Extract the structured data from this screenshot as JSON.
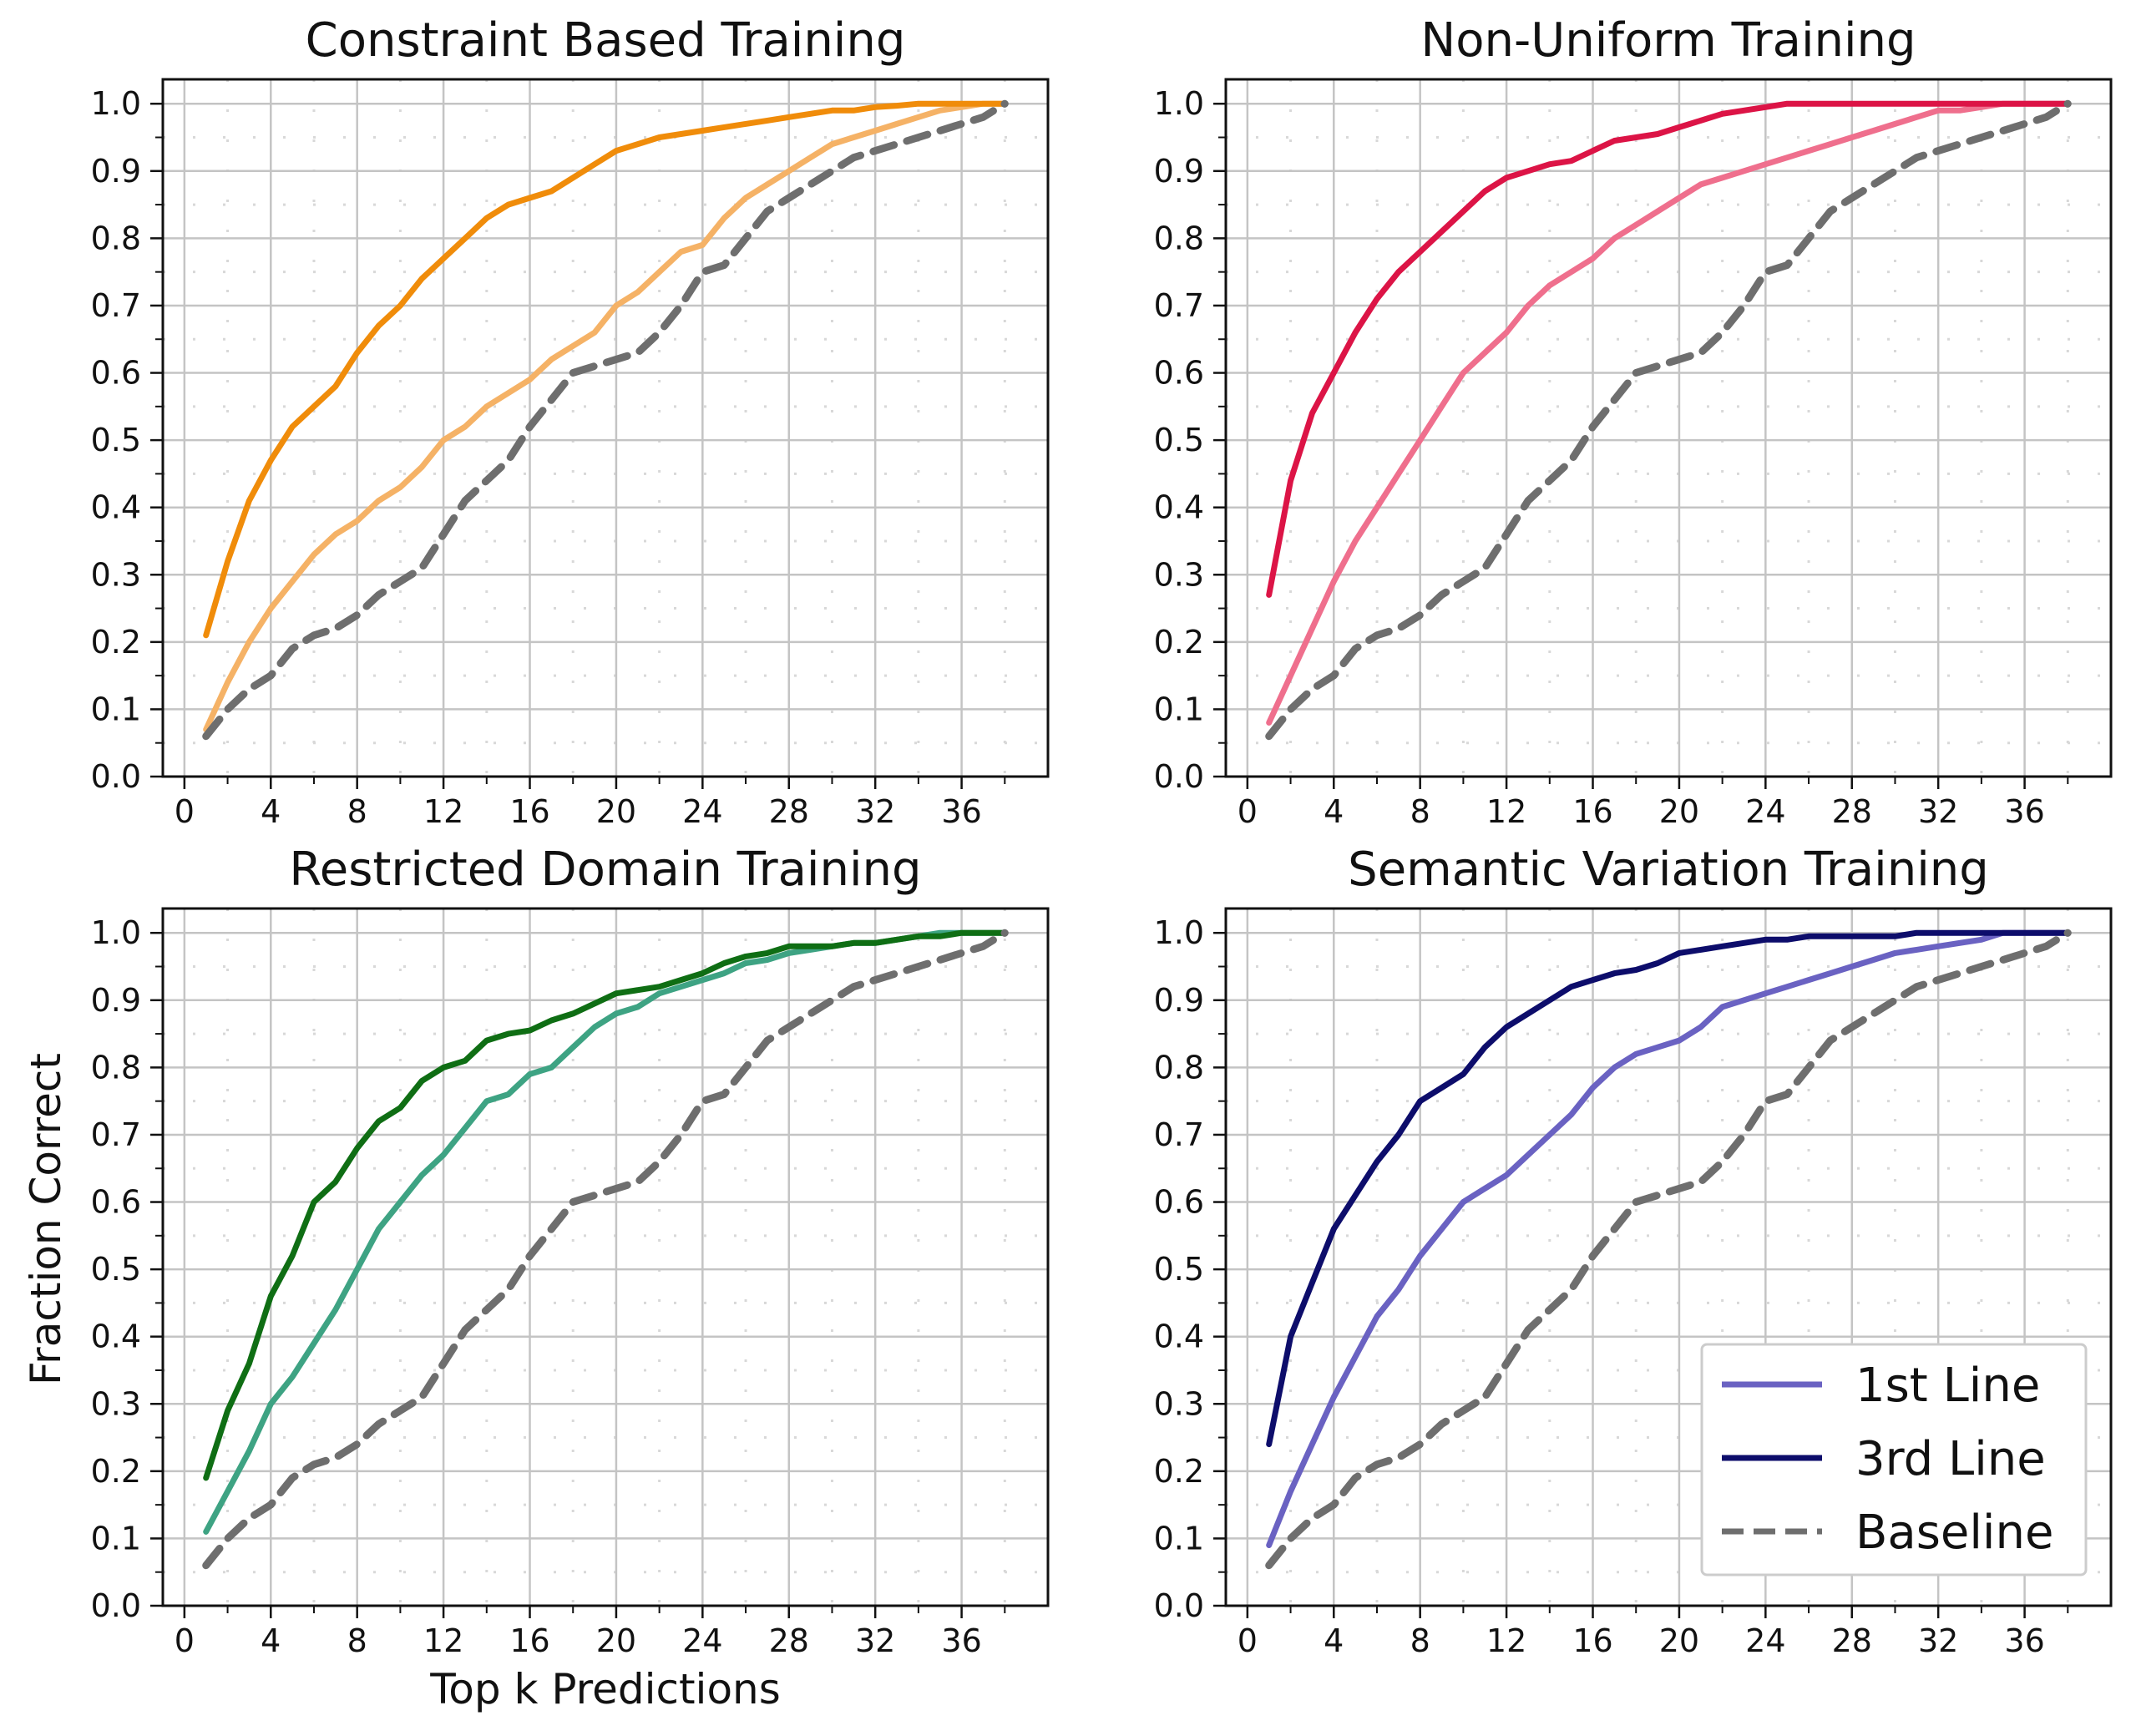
{
  "figure": {
    "xlabel": "Top k Predictions",
    "ylabel": "Fraction Correct"
  },
  "legend": {
    "entries": [
      {
        "label": "1st Line",
        "color": "#6a62c2",
        "style": "solid"
      },
      {
        "label": "3rd Line",
        "color": "#0d0d6b",
        "style": "solid"
      },
      {
        "label": "Baseline",
        "color": "#6e6e6e",
        "style": "dashed"
      }
    ]
  },
  "chart_data": [
    {
      "type": "line",
      "title": "Constraint Based Training",
      "xlabel": "",
      "ylabel": "",
      "xlim": [
        -1,
        40
      ],
      "ylim": [
        0,
        1.0
      ],
      "xticks": [
        0,
        4,
        8,
        12,
        16,
        20,
        24,
        28,
        32,
        36
      ],
      "yticks": [
        0.0,
        0.1,
        0.2,
        0.3,
        0.4,
        0.5,
        0.6,
        0.7,
        0.8,
        0.9,
        1.0
      ],
      "grid": true,
      "x": [
        1,
        2,
        3,
        4,
        5,
        6,
        7,
        8,
        9,
        10,
        11,
        12,
        13,
        14,
        15,
        16,
        17,
        18,
        19,
        20,
        21,
        22,
        23,
        24,
        25,
        26,
        27,
        28,
        29,
        30,
        31,
        32,
        33,
        34,
        35,
        36,
        37,
        38
      ],
      "series": [
        {
          "name": "1st Line",
          "color": "#f5b266",
          "style": "solid",
          "values": [
            0.07,
            0.14,
            0.2,
            0.25,
            0.29,
            0.33,
            0.36,
            0.38,
            0.41,
            0.43,
            0.46,
            0.5,
            0.52,
            0.55,
            0.57,
            0.59,
            0.62,
            0.64,
            0.66,
            0.7,
            0.72,
            0.75,
            0.78,
            0.79,
            0.83,
            0.86,
            0.88,
            0.9,
            0.92,
            0.94,
            0.95,
            0.96,
            0.97,
            0.98,
            0.99,
            0.995,
            1.0,
            1.0
          ]
        },
        {
          "name": "3rd Line",
          "color": "#f08c0a",
          "style": "solid",
          "values": [
            0.21,
            0.32,
            0.41,
            0.47,
            0.52,
            0.55,
            0.58,
            0.63,
            0.67,
            0.7,
            0.74,
            0.77,
            0.8,
            0.83,
            0.85,
            0.86,
            0.87,
            0.89,
            0.91,
            0.93,
            0.94,
            0.95,
            0.955,
            0.96,
            0.965,
            0.97,
            0.975,
            0.98,
            0.985,
            0.99,
            0.99,
            0.995,
            0.997,
            1.0,
            1.0,
            1.0,
            1.0,
            1.0
          ]
        },
        {
          "name": "Baseline",
          "color": "#6e6e6e",
          "style": "dashed",
          "values": [
            0.06,
            0.1,
            0.13,
            0.15,
            0.19,
            0.21,
            0.22,
            0.24,
            0.27,
            0.29,
            0.31,
            0.36,
            0.41,
            0.44,
            0.47,
            0.52,
            0.56,
            0.6,
            0.61,
            0.62,
            0.63,
            0.66,
            0.7,
            0.75,
            0.76,
            0.8,
            0.84,
            0.86,
            0.88,
            0.9,
            0.92,
            0.93,
            0.94,
            0.95,
            0.96,
            0.97,
            0.98,
            1.0
          ]
        }
      ]
    },
    {
      "type": "line",
      "title": "Non-Uniform Training",
      "xlabel": "",
      "ylabel": "",
      "xlim": [
        -1,
        40
      ],
      "ylim": [
        0,
        1.0
      ],
      "xticks": [
        0,
        4,
        8,
        12,
        16,
        20,
        24,
        28,
        32,
        36
      ],
      "yticks": [
        0.0,
        0.1,
        0.2,
        0.3,
        0.4,
        0.5,
        0.6,
        0.7,
        0.8,
        0.9,
        1.0
      ],
      "grid": true,
      "x": [
        1,
        2,
        3,
        4,
        5,
        6,
        7,
        8,
        9,
        10,
        11,
        12,
        13,
        14,
        15,
        16,
        17,
        18,
        19,
        20,
        21,
        22,
        23,
        24,
        25,
        26,
        27,
        28,
        29,
        30,
        31,
        32,
        33,
        34,
        35,
        36,
        37,
        38
      ],
      "series": [
        {
          "name": "1st Line",
          "color": "#ef6f8d",
          "style": "solid",
          "values": [
            0.08,
            0.15,
            0.22,
            0.29,
            0.35,
            0.4,
            0.45,
            0.5,
            0.55,
            0.6,
            0.63,
            0.66,
            0.7,
            0.73,
            0.75,
            0.77,
            0.8,
            0.82,
            0.84,
            0.86,
            0.88,
            0.89,
            0.9,
            0.91,
            0.92,
            0.93,
            0.94,
            0.95,
            0.96,
            0.97,
            0.98,
            0.99,
            0.99,
            0.995,
            1.0,
            1.0,
            1.0,
            1.0
          ]
        },
        {
          "name": "3rd Line",
          "color": "#dc1446",
          "style": "solid",
          "values": [
            0.27,
            0.44,
            0.54,
            0.6,
            0.66,
            0.71,
            0.75,
            0.78,
            0.81,
            0.84,
            0.87,
            0.89,
            0.9,
            0.91,
            0.915,
            0.93,
            0.945,
            0.95,
            0.955,
            0.965,
            0.975,
            0.985,
            0.99,
            0.995,
            1.0,
            1.0,
            1.0,
            1.0,
            1.0,
            1.0,
            1.0,
            1.0,
            1.0,
            1.0,
            1.0,
            1.0,
            1.0,
            1.0
          ]
        },
        {
          "name": "Baseline",
          "color": "#6e6e6e",
          "style": "dashed",
          "values": [
            0.06,
            0.1,
            0.13,
            0.15,
            0.19,
            0.21,
            0.22,
            0.24,
            0.27,
            0.29,
            0.31,
            0.36,
            0.41,
            0.44,
            0.47,
            0.52,
            0.56,
            0.6,
            0.61,
            0.62,
            0.63,
            0.66,
            0.7,
            0.75,
            0.76,
            0.8,
            0.84,
            0.86,
            0.88,
            0.9,
            0.92,
            0.93,
            0.94,
            0.95,
            0.96,
            0.97,
            0.98,
            1.0
          ]
        }
      ]
    },
    {
      "type": "line",
      "title": "Restricted Domain Training",
      "xlabel": "Top k Predictions",
      "ylabel": "Fraction Correct",
      "xlim": [
        -1,
        40
      ],
      "ylim": [
        0,
        1.0
      ],
      "xticks": [
        0,
        4,
        8,
        12,
        16,
        20,
        24,
        28,
        32,
        36
      ],
      "yticks": [
        0.0,
        0.1,
        0.2,
        0.3,
        0.4,
        0.5,
        0.6,
        0.7,
        0.8,
        0.9,
        1.0
      ],
      "grid": true,
      "x": [
        1,
        2,
        3,
        4,
        5,
        6,
        7,
        8,
        9,
        10,
        11,
        12,
        13,
        14,
        15,
        16,
        17,
        18,
        19,
        20,
        21,
        22,
        23,
        24,
        25,
        26,
        27,
        28,
        29,
        30,
        31,
        32,
        33,
        34,
        35,
        36,
        37,
        38
      ],
      "series": [
        {
          "name": "1st Line",
          "color": "#3ea383",
          "style": "solid",
          "values": [
            0.11,
            0.17,
            0.23,
            0.3,
            0.34,
            0.39,
            0.44,
            0.5,
            0.56,
            0.6,
            0.64,
            0.67,
            0.71,
            0.75,
            0.76,
            0.79,
            0.8,
            0.83,
            0.86,
            0.88,
            0.89,
            0.91,
            0.92,
            0.93,
            0.94,
            0.955,
            0.96,
            0.97,
            0.975,
            0.98,
            0.985,
            0.985,
            0.99,
            0.995,
            1.0,
            1.0,
            1.0,
            1.0
          ]
        },
        {
          "name": "3rd Line",
          "color": "#0f6e14",
          "style": "solid",
          "values": [
            0.19,
            0.29,
            0.36,
            0.46,
            0.52,
            0.6,
            0.63,
            0.68,
            0.72,
            0.74,
            0.78,
            0.8,
            0.81,
            0.84,
            0.85,
            0.855,
            0.87,
            0.88,
            0.895,
            0.91,
            0.915,
            0.92,
            0.93,
            0.94,
            0.955,
            0.965,
            0.97,
            0.98,
            0.98,
            0.98,
            0.985,
            0.985,
            0.99,
            0.995,
            0.995,
            1.0,
            1.0,
            1.0
          ]
        },
        {
          "name": "Baseline",
          "color": "#6e6e6e",
          "style": "dashed",
          "values": [
            0.06,
            0.1,
            0.13,
            0.15,
            0.19,
            0.21,
            0.22,
            0.24,
            0.27,
            0.29,
            0.31,
            0.36,
            0.41,
            0.44,
            0.47,
            0.52,
            0.56,
            0.6,
            0.61,
            0.62,
            0.63,
            0.66,
            0.7,
            0.75,
            0.76,
            0.8,
            0.84,
            0.86,
            0.88,
            0.9,
            0.92,
            0.93,
            0.94,
            0.95,
            0.96,
            0.97,
            0.98,
            1.0
          ]
        }
      ]
    },
    {
      "type": "line",
      "title": "Semantic Variation Training",
      "xlabel": "",
      "ylabel": "",
      "xlim": [
        -1,
        40
      ],
      "ylim": [
        0,
        1.0
      ],
      "xticks": [
        0,
        4,
        8,
        12,
        16,
        20,
        24,
        28,
        32,
        36
      ],
      "yticks": [
        0.0,
        0.1,
        0.2,
        0.3,
        0.4,
        0.5,
        0.6,
        0.7,
        0.8,
        0.9,
        1.0
      ],
      "grid": true,
      "legend": "lower right",
      "x": [
        1,
        2,
        3,
        4,
        5,
        6,
        7,
        8,
        9,
        10,
        11,
        12,
        13,
        14,
        15,
        16,
        17,
        18,
        19,
        20,
        21,
        22,
        23,
        24,
        25,
        26,
        27,
        28,
        29,
        30,
        31,
        32,
        33,
        34,
        35,
        36,
        37,
        38
      ],
      "series": [
        {
          "name": "1st Line",
          "color": "#6a62c2",
          "style": "solid",
          "values": [
            0.09,
            0.17,
            0.24,
            0.31,
            0.37,
            0.43,
            0.47,
            0.52,
            0.56,
            0.6,
            0.62,
            0.64,
            0.67,
            0.7,
            0.73,
            0.77,
            0.8,
            0.82,
            0.83,
            0.84,
            0.86,
            0.89,
            0.9,
            0.91,
            0.92,
            0.93,
            0.94,
            0.95,
            0.96,
            0.97,
            0.975,
            0.98,
            0.985,
            0.99,
            1.0,
            1.0,
            1.0,
            1.0
          ]
        },
        {
          "name": "3rd Line",
          "color": "#0d0d6b",
          "style": "solid",
          "values": [
            0.24,
            0.4,
            0.48,
            0.56,
            0.61,
            0.66,
            0.7,
            0.75,
            0.77,
            0.79,
            0.83,
            0.86,
            0.88,
            0.9,
            0.92,
            0.93,
            0.94,
            0.945,
            0.955,
            0.97,
            0.975,
            0.98,
            0.985,
            0.99,
            0.99,
            0.995,
            0.995,
            0.995,
            0.995,
            0.995,
            1.0,
            1.0,
            1.0,
            1.0,
            1.0,
            1.0,
            1.0,
            1.0
          ]
        },
        {
          "name": "Baseline",
          "color": "#6e6e6e",
          "style": "dashed",
          "values": [
            0.06,
            0.1,
            0.13,
            0.15,
            0.19,
            0.21,
            0.22,
            0.24,
            0.27,
            0.29,
            0.31,
            0.36,
            0.41,
            0.44,
            0.47,
            0.52,
            0.56,
            0.6,
            0.61,
            0.62,
            0.63,
            0.66,
            0.7,
            0.75,
            0.76,
            0.8,
            0.84,
            0.86,
            0.88,
            0.9,
            0.92,
            0.93,
            0.94,
            0.95,
            0.96,
            0.97,
            0.98,
            1.0
          ]
        }
      ]
    }
  ]
}
